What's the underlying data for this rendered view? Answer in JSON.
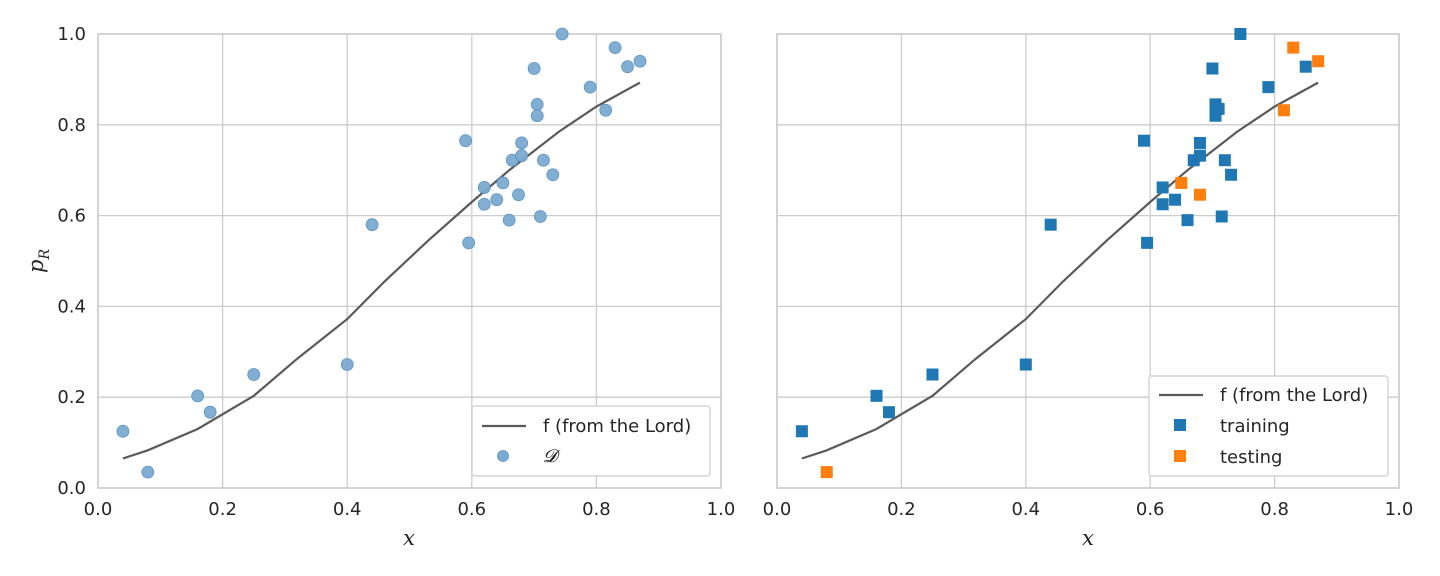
{
  "chart_data": [
    {
      "type": "scatter",
      "xlabel": "x",
      "ylabel": "p_R",
      "ylabel_main": "p",
      "ylabel_sub": "R",
      "xlim": [
        0.0,
        1.0
      ],
      "ylim": [
        0.0,
        1.0
      ],
      "xticks": [
        "0.0",
        "0.2",
        "0.4",
        "0.6",
        "0.8",
        "1.0"
      ],
      "yticks": [
        "0.0",
        "0.2",
        "0.4",
        "0.6",
        "0.8",
        "1.0"
      ],
      "grid": true,
      "legend_position": "bottom-right",
      "line": {
        "name": "f (from the Lord)",
        "color": "#5a5a5a",
        "x": [
          0.04,
          0.08,
          0.16,
          0.25,
          0.32,
          0.4,
          0.46,
          0.53,
          0.6,
          0.66,
          0.74,
          0.8,
          0.87
        ],
        "y": [
          0.065,
          0.083,
          0.13,
          0.203,
          0.285,
          0.372,
          0.455,
          0.545,
          0.63,
          0.7,
          0.785,
          0.84,
          0.893
        ]
      },
      "series": [
        {
          "name": "𝓓",
          "marker": "circle",
          "color": "#7aaad0",
          "x": [
            0.04,
            0.08,
            0.16,
            0.18,
            0.25,
            0.4,
            0.44,
            0.59,
            0.595,
            0.62,
            0.62,
            0.64,
            0.65,
            0.66,
            0.665,
            0.675,
            0.68,
            0.68,
            0.7,
            0.705,
            0.705,
            0.71,
            0.715,
            0.73,
            0.745,
            0.79,
            0.815,
            0.83,
            0.85,
            0.87
          ],
          "y": [
            0.125,
            0.035,
            0.203,
            0.167,
            0.25,
            0.272,
            0.58,
            0.765,
            0.54,
            0.662,
            0.625,
            0.635,
            0.672,
            0.59,
            0.722,
            0.646,
            0.76,
            0.732,
            0.924,
            0.845,
            0.82,
            0.598,
            0.722,
            0.69,
            1.0,
            0.883,
            0.832,
            0.97,
            0.928,
            0.94
          ]
        }
      ]
    },
    {
      "type": "scatter",
      "xlabel": "x",
      "xlim": [
        0.0,
        1.0
      ],
      "ylim": [
        0.0,
        1.0
      ],
      "xticks": [
        "0.0",
        "0.2",
        "0.4",
        "0.6",
        "0.8",
        "1.0"
      ],
      "grid": true,
      "legend_position": "bottom-right",
      "line": {
        "name": "f (from the Lord)",
        "color": "#5a5a5a",
        "x": [
          0.04,
          0.08,
          0.16,
          0.25,
          0.32,
          0.4,
          0.46,
          0.53,
          0.6,
          0.66,
          0.74,
          0.8,
          0.87
        ],
        "y": [
          0.065,
          0.083,
          0.13,
          0.203,
          0.285,
          0.372,
          0.455,
          0.545,
          0.63,
          0.7,
          0.785,
          0.84,
          0.893
        ]
      },
      "series": [
        {
          "name": "training",
          "marker": "square",
          "color": "#1f77b4",
          "x": [
            0.04,
            0.16,
            0.18,
            0.25,
            0.4,
            0.44,
            0.59,
            0.595,
            0.62,
            0.62,
            0.64,
            0.66,
            0.67,
            0.68,
            0.68,
            0.7,
            0.705,
            0.705,
            0.71,
            0.715,
            0.72,
            0.73,
            0.745,
            0.79,
            0.85
          ],
          "y": [
            0.125,
            0.203,
            0.167,
            0.25,
            0.272,
            0.58,
            0.765,
            0.54,
            0.662,
            0.625,
            0.635,
            0.59,
            0.722,
            0.76,
            0.732,
            0.924,
            0.845,
            0.82,
            0.835,
            0.598,
            0.722,
            0.69,
            1.0,
            0.883,
            0.928
          ]
        },
        {
          "name": "testing",
          "marker": "square",
          "color": "#ff7f0e",
          "x": [
            0.08,
            0.65,
            0.68,
            0.815,
            0.83,
            0.87
          ],
          "y": [
            0.035,
            0.672,
            0.646,
            0.832,
            0.97,
            0.94
          ]
        }
      ]
    }
  ]
}
